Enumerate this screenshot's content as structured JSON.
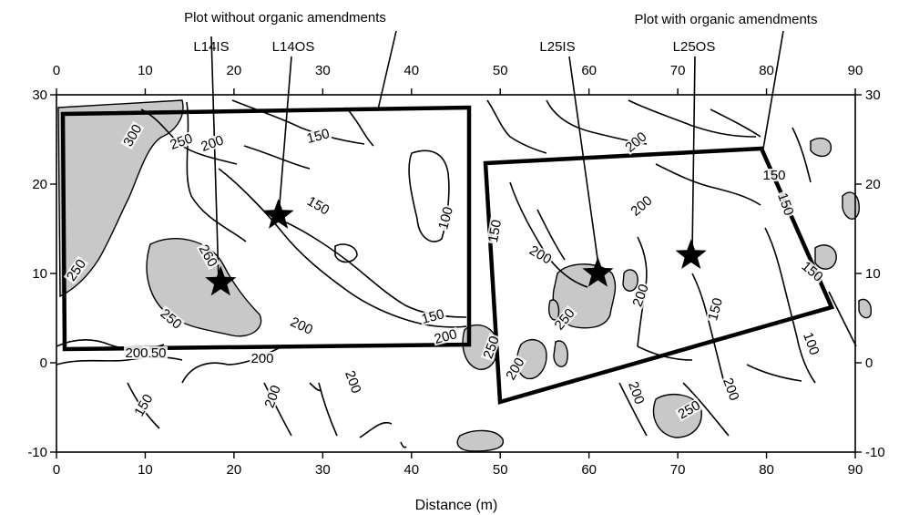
{
  "map": {
    "x_axis_title": "Distance (m)",
    "x_ticks": [
      "0",
      "10",
      "20",
      "30",
      "40",
      "50",
      "60",
      "70",
      "80",
      "90"
    ],
    "y_ticks": [
      "30",
      "20",
      "10",
      "0",
      "-10"
    ],
    "annotations": {
      "plot_without": "Plot without organic amendments",
      "plot_with": "Plot with organic amendments"
    },
    "stations": [
      {
        "id": "L14IS",
        "x": 18.5,
        "y": 9
      },
      {
        "id": "L14OS",
        "x": 25,
        "y": 16.5
      },
      {
        "id": "L25IS",
        "x": 61,
        "y": 10
      },
      {
        "id": "L25OS",
        "x": 71.5,
        "y": 12
      }
    ],
    "plots": [
      {
        "name": "without",
        "corners": [
          [
            0.5,
            28
          ],
          [
            46.5,
            28.5
          ],
          [
            46.5,
            2
          ],
          [
            0.5,
            1.5
          ]
        ]
      },
      {
        "name": "with",
        "corners": [
          [
            48.5,
            22.5
          ],
          [
            79.5,
            24
          ],
          [
            87,
            6.5
          ],
          [
            50,
            -4.5
          ]
        ]
      }
    ],
    "contour_labels": [
      {
        "text": "300"
      },
      {
        "text": "250"
      },
      {
        "text": "200"
      },
      {
        "text": "150"
      },
      {
        "text": "150"
      },
      {
        "text": "100"
      },
      {
        "text": "250"
      },
      {
        "text": "260"
      },
      {
        "text": "250"
      },
      {
        "text": "200"
      },
      {
        "text": "150"
      },
      {
        "text": "200"
      },
      {
        "text": "150"
      },
      {
        "text": "200"
      },
      {
        "text": "200"
      },
      {
        "text": "150"
      },
      {
        "text": "150"
      },
      {
        "text": "200"
      },
      {
        "text": "250"
      },
      {
        "text": "200"
      },
      {
        "text": "200"
      },
      {
        "text": "200"
      },
      {
        "text": "150"
      },
      {
        "text": "150"
      },
      {
        "text": "100"
      },
      {
        "text": "200"
      },
      {
        "text": "250"
      },
      {
        "text": "200"
      },
      {
        "text": "200"
      },
      {
        "text": "150"
      },
      {
        "text": "200"
      },
      {
        "text": "150"
      },
      {
        "text": "250"
      },
      {
        "text": "200"
      }
    ],
    "colors": {
      "shade": "#c8c8c8",
      "line": "#000000",
      "background": "#ffffff"
    }
  }
}
